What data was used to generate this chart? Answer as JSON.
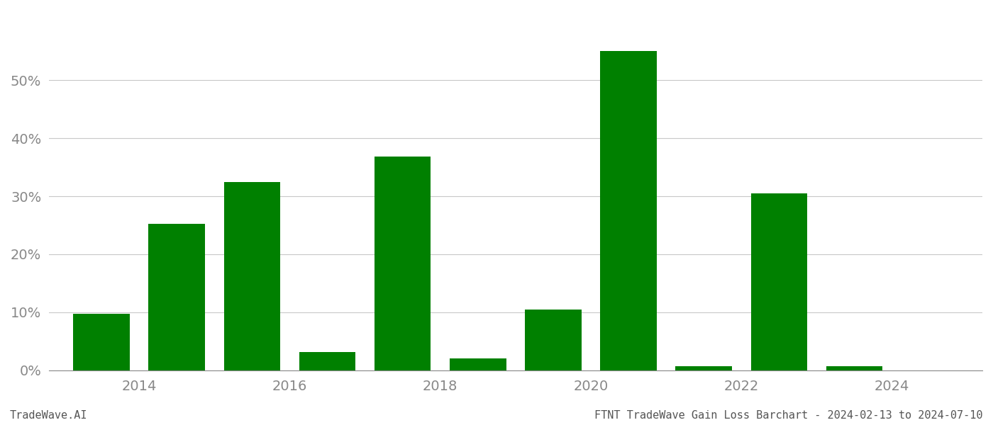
{
  "years": [
    2013,
    2014,
    2015,
    2016,
    2017,
    2018,
    2019,
    2020,
    2021,
    2022,
    2023,
    2024
  ],
  "values": [
    0.097,
    0.252,
    0.325,
    0.031,
    0.368,
    0.021,
    0.105,
    0.551,
    0.007,
    0.305,
    0.007,
    0.0
  ],
  "bar_color": "#008000",
  "background_color": "#ffffff",
  "grid_color": "#c8c8c8",
  "ylabel": "",
  "xlabel": "",
  "ylim": [
    0,
    0.62
  ],
  "yticks": [
    0.0,
    0.1,
    0.2,
    0.3,
    0.4,
    0.5
  ],
  "xtick_labels": [
    "2014",
    "2016",
    "2018",
    "2020",
    "2022",
    "2024"
  ],
  "xtick_positions": [
    2013.5,
    2015.5,
    2017.5,
    2019.5,
    2021.5,
    2023.5
  ],
  "footer_left": "TradeWave.AI",
  "footer_right": "FTNT TradeWave Gain Loss Barchart - 2024-02-13 to 2024-07-10",
  "tick_fontsize": 14,
  "footer_fontsize": 11,
  "bar_width": 0.75,
  "axis_color": "#888888",
  "tick_color": "#888888",
  "footer_color": "#555555"
}
